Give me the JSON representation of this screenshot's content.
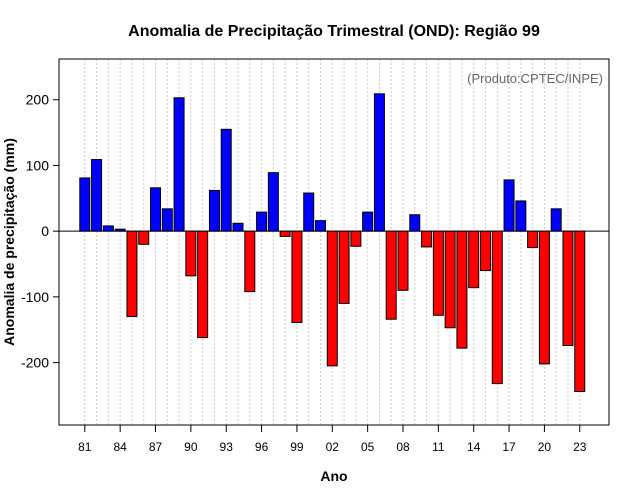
{
  "chart_data": {
    "type": "bar",
    "title": "Anomalia de Precipitação Trimestral (OND): Região 99",
    "xlabel": "Ano",
    "ylabel": "Anomalia de precipitação (mm)",
    "annotation": "(Produto:CPTEC/INPE)",
    "ylim": [
      -295,
      262
    ],
    "yticks": [
      -200,
      -100,
      0,
      100,
      200
    ],
    "grid": "vertical dotted",
    "positive_color": "#0000ff",
    "negative_color": "#ff0000",
    "years": [
      1981,
      1982,
      1983,
      1984,
      1985,
      1986,
      1987,
      1988,
      1989,
      1990,
      1991,
      1992,
      1993,
      1994,
      1995,
      1996,
      1997,
      1998,
      1999,
      2000,
      2001,
      2002,
      2003,
      2004,
      2005,
      2006,
      2007,
      2008,
      2009,
      2010,
      2011,
      2012,
      2013,
      2014,
      2015,
      2016,
      2017,
      2018,
      2019,
      2020,
      2021,
      2022,
      2023
    ],
    "values": [
      81,
      109,
      8,
      3,
      -130,
      -20,
      66,
      34,
      203,
      -68,
      -162,
      62,
      155,
      12,
      -92,
      29,
      89,
      -8,
      -139,
      58,
      16,
      -205,
      -110,
      -23,
      29,
      209,
      -134,
      -90,
      25,
      -24,
      -128,
      -147,
      -178,
      -86,
      -60,
      -232,
      78,
      46,
      -25,
      -202,
      34,
      -174,
      -244
    ],
    "xtick_labels": [
      "81",
      "84",
      "87",
      "90",
      "93",
      "96",
      "99",
      "02",
      "05",
      "08",
      "11",
      "14",
      "17",
      "20",
      "23"
    ]
  }
}
